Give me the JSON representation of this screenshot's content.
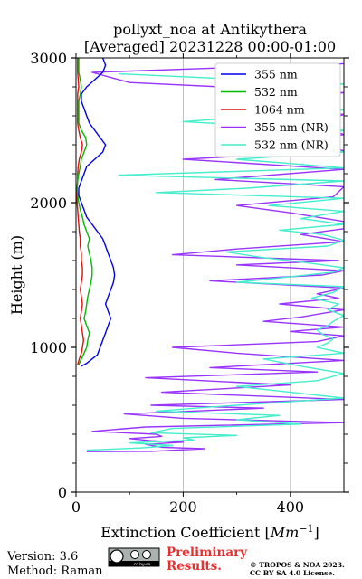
{
  "chart_data": {
    "type": "line",
    "title": "pollyxt_noa at Antikythera\n[Averaged] 20231228 00:00-01:00",
    "xlabel": "Extinction Coefficient [Mm⁻¹]",
    "ylabel": "Height (m)",
    "xlim": [
      0,
      500
    ],
    "ylim": [
      0,
      3000
    ],
    "xticks": [
      0,
      200,
      400
    ],
    "yticks": [
      0,
      1000,
      2000,
      3000
    ],
    "grid": "vertical",
    "legend": "top-right",
    "series": [
      {
        "name": "355 nm",
        "color": "#0000ee",
        "points": [
          [
            10,
            870
          ],
          [
            20,
            890
          ],
          [
            30,
            920
          ],
          [
            40,
            950
          ],
          [
            45,
            1000
          ],
          [
            50,
            1050
          ],
          [
            55,
            1100
          ],
          [
            60,
            1150
          ],
          [
            65,
            1200
          ],
          [
            60,
            1250
          ],
          [
            55,
            1300
          ],
          [
            60,
            1350
          ],
          [
            65,
            1400
          ],
          [
            70,
            1450
          ],
          [
            72,
            1500
          ],
          [
            70,
            1550
          ],
          [
            65,
            1600
          ],
          [
            60,
            1650
          ],
          [
            55,
            1700
          ],
          [
            50,
            1750
          ],
          [
            40,
            1800
          ],
          [
            30,
            1850
          ],
          [
            20,
            1900
          ],
          [
            15,
            1950
          ],
          [
            10,
            2000
          ],
          [
            5,
            2050
          ],
          [
            5,
            2100
          ],
          [
            10,
            2150
          ],
          [
            15,
            2200
          ],
          [
            20,
            2250
          ],
          [
            35,
            2300
          ],
          [
            50,
            2350
          ],
          [
            55,
            2400
          ],
          [
            45,
            2450
          ],
          [
            35,
            2500
          ],
          [
            25,
            2550
          ],
          [
            20,
            2600
          ],
          [
            15,
            2650
          ],
          [
            10,
            2700
          ],
          [
            10,
            2750
          ],
          [
            20,
            2800
          ],
          [
            35,
            2850
          ],
          [
            50,
            2900
          ],
          [
            55,
            2950
          ],
          [
            50,
            3000
          ]
        ]
      },
      {
        "name": "532 nm",
        "color": "#00bb00",
        "points": [
          [
            5,
            880
          ],
          [
            10,
            920
          ],
          [
            15,
            960
          ],
          [
            20,
            1000
          ],
          [
            22,
            1050
          ],
          [
            25,
            1100
          ],
          [
            20,
            1150
          ],
          [
            15,
            1200
          ],
          [
            18,
            1250
          ],
          [
            20,
            1300
          ],
          [
            22,
            1350
          ],
          [
            25,
            1400
          ],
          [
            28,
            1450
          ],
          [
            30,
            1500
          ],
          [
            30,
            1550
          ],
          [
            28,
            1600
          ],
          [
            25,
            1650
          ],
          [
            22,
            1700
          ],
          [
            25,
            1750
          ],
          [
            20,
            1800
          ],
          [
            15,
            1850
          ],
          [
            12,
            1900
          ],
          [
            8,
            1950
          ],
          [
            5,
            2000
          ],
          [
            3,
            2050
          ],
          [
            2,
            2100
          ],
          [
            3,
            2150
          ],
          [
            5,
            2200
          ],
          [
            8,
            2250
          ],
          [
            10,
            2300
          ],
          [
            15,
            2350
          ],
          [
            20,
            2400
          ],
          [
            18,
            2450
          ],
          [
            10,
            2500
          ],
          [
            5,
            2550
          ],
          [
            5,
            2600
          ],
          [
            5,
            2650
          ],
          [
            5,
            2700
          ],
          [
            8,
            2750
          ],
          [
            10,
            2800
          ],
          [
            8,
            2850
          ],
          [
            5,
            2900
          ],
          [
            5,
            2950
          ],
          [
            5,
            3000
          ]
        ]
      },
      {
        "name": "1064 nm",
        "color": "#dd1111",
        "points": [
          [
            3,
            880
          ],
          [
            6,
            920
          ],
          [
            10,
            960
          ],
          [
            12,
            1000
          ],
          [
            14,
            1050
          ],
          [
            12,
            1100
          ],
          [
            10,
            1150
          ],
          [
            8,
            1200
          ],
          [
            10,
            1250
          ],
          [
            12,
            1300
          ],
          [
            10,
            1350
          ],
          [
            8,
            1400
          ],
          [
            10,
            1450
          ],
          [
            12,
            1500
          ],
          [
            12,
            1550
          ],
          [
            10,
            1600
          ],
          [
            10,
            1650
          ],
          [
            8,
            1700
          ],
          [
            8,
            1750
          ],
          [
            6,
            1800
          ],
          [
            5,
            1850
          ],
          [
            4,
            1900
          ],
          [
            3,
            1950
          ],
          [
            2,
            2000
          ],
          [
            2,
            2050
          ],
          [
            2,
            2100
          ],
          [
            3,
            2150
          ],
          [
            3,
            2200
          ],
          [
            4,
            2250
          ],
          [
            6,
            2300
          ],
          [
            10,
            2350
          ],
          [
            12,
            2400
          ],
          [
            8,
            2450
          ],
          [
            5,
            2500
          ],
          [
            3,
            2550
          ],
          [
            3,
            2600
          ],
          [
            3,
            2650
          ],
          [
            3,
            2700
          ],
          [
            3,
            2750
          ],
          [
            5,
            2800
          ],
          [
            4,
            2850
          ],
          [
            3,
            2900
          ],
          [
            3,
            2950
          ],
          [
            3,
            3000
          ]
        ]
      },
      {
        "name": "355 nm (NR)",
        "color": "#9933ff",
        "points": [
          [
            20,
            280
          ],
          [
            140,
            282
          ],
          [
            240,
            300
          ],
          [
            160,
            310
          ],
          [
            130,
            330
          ],
          [
            200,
            345
          ],
          [
            140,
            355
          ],
          [
            100,
            370
          ],
          [
            160,
            385
          ],
          [
            150,
            400
          ],
          [
            30,
            420
          ],
          [
            130,
            450
          ],
          [
            500,
            480
          ],
          [
            200,
            510
          ],
          [
            90,
            540
          ],
          [
            350,
            580
          ],
          [
            140,
            600
          ],
          [
            500,
            640
          ],
          [
            160,
            690
          ],
          [
            400,
            740
          ],
          [
            130,
            790
          ],
          [
            450,
            830
          ],
          [
            250,
            860
          ],
          [
            500,
            910
          ],
          [
            300,
            960
          ],
          [
            180,
            1000
          ],
          [
            450,
            1040
          ],
          [
            500,
            1080
          ],
          [
            400,
            1110
          ],
          [
            500,
            1140
          ],
          [
            350,
            1180
          ],
          [
            420,
            1210
          ],
          [
            500,
            1260
          ],
          [
            380,
            1300
          ],
          [
            490,
            1340
          ],
          [
            450,
            1370
          ],
          [
            500,
            1410
          ],
          [
            250,
            1460
          ],
          [
            460,
            1500
          ],
          [
            500,
            1530
          ],
          [
            300,
            1570
          ],
          [
            490,
            1600
          ],
          [
            180,
            1640
          ],
          [
            300,
            1680
          ],
          [
            500,
            1730
          ],
          [
            420,
            1780
          ],
          [
            500,
            1820
          ],
          [
            500,
            1870
          ],
          [
            400,
            1930
          ],
          [
            300,
            1980
          ],
          [
            480,
            2040
          ],
          [
            500,
            2110
          ],
          [
            260,
            2160
          ],
          [
            500,
            2230
          ],
          [
            200,
            2300
          ],
          [
            500,
            2360
          ],
          [
            400,
            2420
          ],
          [
            500,
            2470
          ],
          [
            450,
            2540
          ],
          [
            500,
            2610
          ],
          [
            300,
            2680
          ],
          [
            500,
            2760
          ],
          [
            100,
            2830
          ],
          [
            30,
            2900
          ],
          [
            500,
            2960
          ]
        ]
      },
      {
        "name": "532 nm (NR)",
        "color": "#44eecc",
        "points": [
          [
            20,
            290
          ],
          [
            120,
            305
          ],
          [
            180,
            322
          ],
          [
            100,
            340
          ],
          [
            220,
            360
          ],
          [
            200,
            375
          ],
          [
            300,
            392
          ],
          [
            140,
            410
          ],
          [
            180,
            440
          ],
          [
            420,
            470
          ],
          [
            300,
            500
          ],
          [
            380,
            530
          ],
          [
            150,
            560
          ],
          [
            260,
            590
          ],
          [
            380,
            620
          ],
          [
            500,
            650
          ],
          [
            400,
            690
          ],
          [
            300,
            730
          ],
          [
            450,
            770
          ],
          [
            500,
            820
          ],
          [
            420,
            870
          ],
          [
            350,
            920
          ],
          [
            500,
            960
          ],
          [
            450,
            1000
          ],
          [
            470,
            1030
          ],
          [
            480,
            1060
          ],
          [
            460,
            1090
          ],
          [
            450,
            1120
          ],
          [
            470,
            1150
          ],
          [
            480,
            1180
          ],
          [
            500,
            1220
          ],
          [
            470,
            1260
          ],
          [
            490,
            1300
          ],
          [
            440,
            1340
          ],
          [
            480,
            1380
          ],
          [
            500,
            1420
          ],
          [
            300,
            1450
          ],
          [
            380,
            1480
          ],
          [
            480,
            1520
          ],
          [
            500,
            1550
          ],
          [
            420,
            1590
          ],
          [
            350,
            1620
          ],
          [
            280,
            1660
          ],
          [
            470,
            1700
          ],
          [
            500,
            1740
          ],
          [
            460,
            1780
          ],
          [
            380,
            1810
          ],
          [
            500,
            1850
          ],
          [
            420,
            1890
          ],
          [
            500,
            1940
          ],
          [
            360,
            1980
          ],
          [
            500,
            2030
          ],
          [
            150,
            2070
          ],
          [
            320,
            2100
          ],
          [
            500,
            2150
          ],
          [
            80,
            2190
          ],
          [
            500,
            2240
          ],
          [
            300,
            2300
          ],
          [
            500,
            2350
          ],
          [
            400,
            2420
          ],
          [
            500,
            2500
          ],
          [
            200,
            2560
          ],
          [
            500,
            2640
          ],
          [
            320,
            2720
          ],
          [
            500,
            2820
          ],
          [
            80,
            2890
          ]
        ]
      }
    ]
  },
  "footer": {
    "version": "Version: 3.6",
    "method": "Method: Raman",
    "license_badge": "cc by-sa",
    "prelim_line1": "Preliminary",
    "prelim_line2": "Results.",
    "copyright_line1": "© TROPOS & NOA 2023.",
    "copyright_line2": "CC BY SA 4.0 License.",
    "prelim_color": "#e83030"
  }
}
